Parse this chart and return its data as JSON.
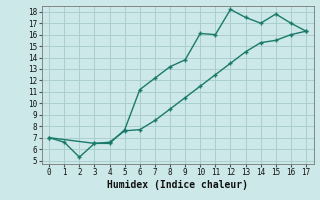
{
  "title": "",
  "xlabel": "Humidex (Indice chaleur)",
  "bg_color": "#cce8e8",
  "grid_color": "#aacfcf",
  "line_color": "#1a7a6a",
  "xlim": [
    -0.5,
    17.5
  ],
  "ylim": [
    4.7,
    18.5
  ],
  "xticks": [
    0,
    1,
    2,
    3,
    4,
    5,
    6,
    7,
    8,
    9,
    10,
    11,
    12,
    13,
    14,
    15,
    16,
    17
  ],
  "yticks": [
    5,
    6,
    7,
    8,
    9,
    10,
    11,
    12,
    13,
    14,
    15,
    16,
    17,
    18
  ],
  "line1_x": [
    0,
    1,
    2,
    3,
    4,
    5,
    6,
    7,
    8,
    9,
    10,
    11,
    12,
    13,
    14,
    15,
    16,
    17
  ],
  "line1_y": [
    7,
    6.6,
    5.3,
    6.5,
    6.5,
    7.7,
    11.2,
    12.2,
    13.2,
    13.8,
    16.1,
    16.0,
    18.2,
    17.5,
    17.0,
    17.8,
    17.0,
    16.3
  ],
  "line2_x": [
    0,
    3,
    4,
    5,
    6,
    7,
    8,
    9,
    10,
    11,
    12,
    13,
    14,
    15,
    16,
    17
  ],
  "line2_y": [
    7,
    6.5,
    6.6,
    7.6,
    7.7,
    8.5,
    9.5,
    10.5,
    11.5,
    12.5,
    13.5,
    14.5,
    15.3,
    15.5,
    16.0,
    16.3
  ]
}
